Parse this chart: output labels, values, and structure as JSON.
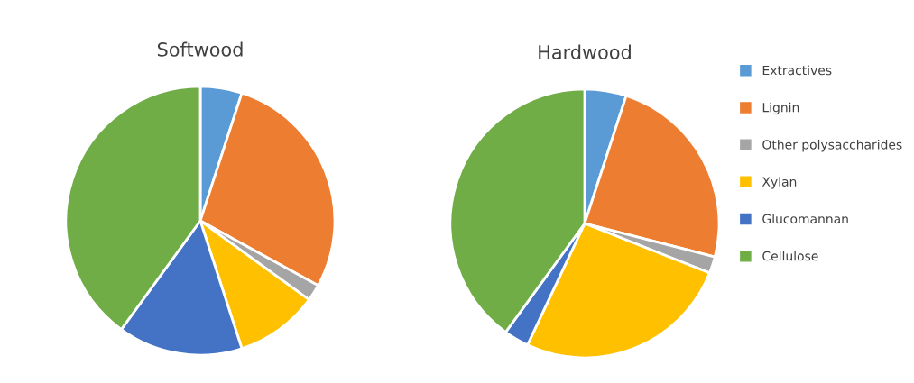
{
  "chart_data": [
    {
      "type": "pie",
      "title": "Softwood",
      "categories": [
        null,
        null,
        null,
        null,
        null,
        null
      ],
      "values": [
        5,
        28,
        2,
        10,
        15,
        40
      ],
      "colors": [
        "#5b9bd5",
        "#ed7d31",
        "#a5a5a5",
        "#ffc000",
        "#4472c4",
        "#70ad47"
      ],
      "legend": false
    },
    {
      "type": "pie",
      "title": "Hardwood",
      "categories": [
        "Extractives",
        "Lignin",
        "Other polysaccharides",
        "Xylan",
        "Glucomannan",
        "Cellulose"
      ],
      "values": [
        5,
        24,
        2,
        26,
        3,
        40
      ],
      "colors": [
        "#5b9bd5",
        "#ed7d31",
        "#a5a5a5",
        "#ffc000",
        "#4472c4",
        "#70ad47"
      ],
      "legend": "right"
    }
  ]
}
